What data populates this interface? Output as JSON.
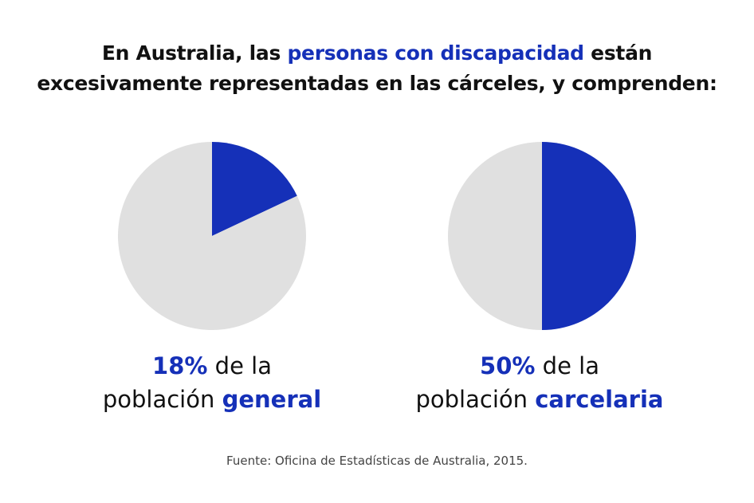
{
  "title": {
    "line1_pre": "En Australia, las ",
    "line1_highlight": "personas con discapacidad",
    "line1_post": " están",
    "line2": "excesivamente representadas en las cárceles, y comprenden:"
  },
  "colors": {
    "highlight": "#1530b8",
    "rest": "#e0e0e0"
  },
  "chart_data": [
    {
      "type": "pie",
      "categories": [
        "personas con discapacidad",
        "resto"
      ],
      "values": [
        18,
        82
      ],
      "label": {
        "value": "18%",
        "text1": " de la",
        "text2": "población ",
        "emphasis": "general"
      }
    },
    {
      "type": "pie",
      "categories": [
        "personas con discapacidad",
        "resto"
      ],
      "values": [
        50,
        50
      ],
      "label": {
        "value": "50%",
        "text1": " de la",
        "text2": "población ",
        "emphasis": "carcelaria"
      }
    }
  ],
  "source": "Fuente: Oficina de Estadísticas de Australia, 2015."
}
